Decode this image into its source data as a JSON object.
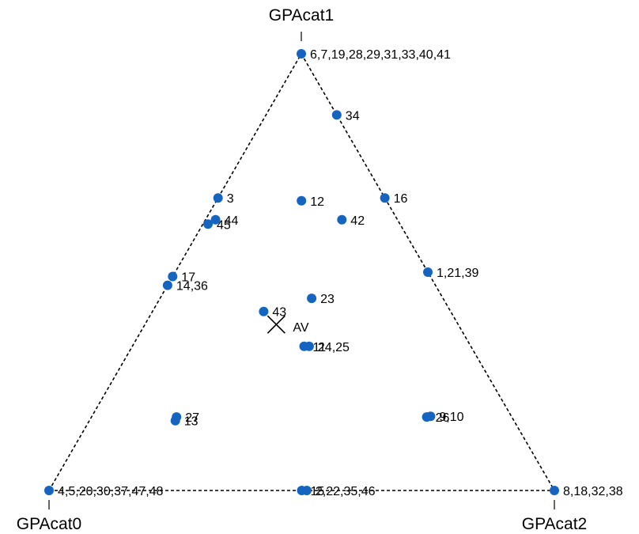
{
  "chart_data": {
    "type": "scatter",
    "subtype": "ternary",
    "title": "",
    "vertices": [
      "GPAcat0",
      "GPAcat1",
      "GPAcat2"
    ],
    "points": [
      {
        "label": "6,7,19,28,29,31,33,40,41",
        "c0": 0.0,
        "c1": 1.0,
        "c2": 0.0
      },
      {
        "label": "34",
        "c0": 0.0,
        "c1": 0.86,
        "c2": 0.14
      },
      {
        "label": "3",
        "c0": 0.33,
        "c1": 0.67,
        "c2": 0.0
      },
      {
        "label": "12",
        "c0": 0.17,
        "c1": 0.67,
        "c2": 0.17
      },
      {
        "label": "16",
        "c0": 0.0,
        "c1": 0.67,
        "c2": 0.33
      },
      {
        "label": "44",
        "c0": 0.36,
        "c1": 0.62,
        "c2": 0.02
      },
      {
        "label": "45",
        "c0": 0.38,
        "c1": 0.61,
        "c2": 0.01
      },
      {
        "label": "42",
        "c0": 0.11,
        "c1": 0.62,
        "c2": 0.27
      },
      {
        "label": "17",
        "c0": 0.51,
        "c1": 0.49,
        "c2": 0.0
      },
      {
        "label": "14,36",
        "c0": 0.53,
        "c1": 0.47,
        "c2": 0.0
      },
      {
        "label": "1,21,39",
        "c0": 0.0,
        "c1": 0.5,
        "c2": 0.5
      },
      {
        "label": "23",
        "c0": 0.26,
        "c1": 0.44,
        "c2": 0.3
      },
      {
        "label": "43",
        "c0": 0.37,
        "c1": 0.41,
        "c2": 0.22
      },
      {
        "label": "11",
        "c0": 0.33,
        "c1": 0.33,
        "c2": 0.34
      },
      {
        "label": "24,25",
        "c0": 0.32,
        "c1": 0.33,
        "c2": 0.35
      },
      {
        "label": "27",
        "c0": 0.67,
        "c1": 0.17,
        "c2": 0.17
      },
      {
        "label": "13",
        "c0": 0.67,
        "c1": 0.16,
        "c2": 0.17
      },
      {
        "label": "26",
        "c0": 0.17,
        "c1": 0.17,
        "c2": 0.67
      },
      {
        "label": "9,10",
        "c0": 0.16,
        "c1": 0.17,
        "c2": 0.67
      },
      {
        "label": "4,5,20,30,37,47,48",
        "c0": 1.0,
        "c1": 0.0,
        "c2": 0.0
      },
      {
        "label": "15",
        "c0": 0.5,
        "c1": 0.0,
        "c2": 0.5
      },
      {
        "label": "2,22,35,46",
        "c0": 0.49,
        "c1": 0.0,
        "c2": 0.51
      },
      {
        "label": "8,18,32,38",
        "c0": 0.0,
        "c1": 0.0,
        "c2": 1.0
      }
    ],
    "average": {
      "label": "AV",
      "c0": 0.36,
      "c1": 0.38,
      "c2": 0.26
    },
    "point_color": "#1565c0",
    "edge_style": "dashed",
    "grid": false
  }
}
